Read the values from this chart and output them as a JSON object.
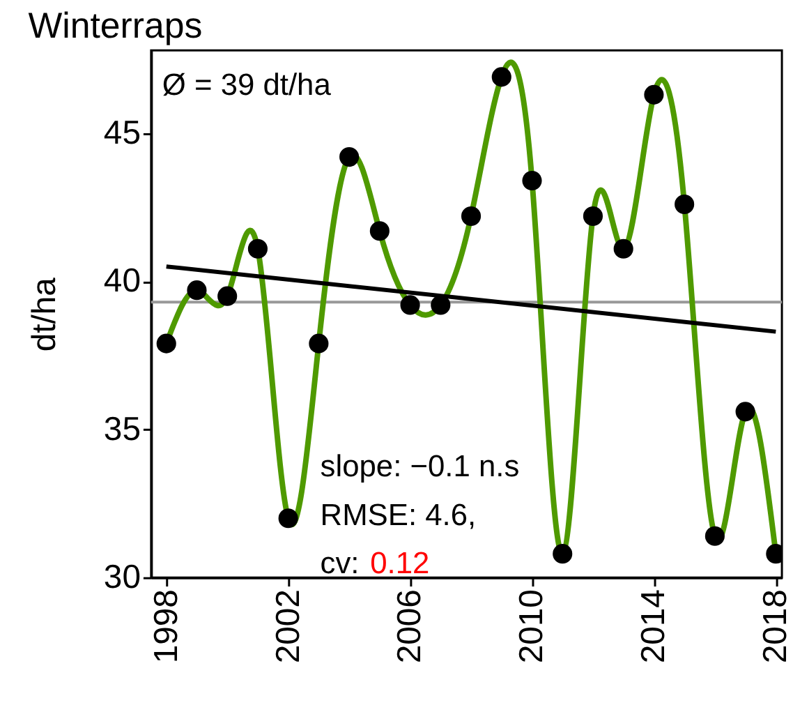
{
  "chart_data": {
    "type": "line",
    "title": "Winterraps",
    "ylabel": "dt/ha",
    "x": [
      1998,
      1999,
      2000,
      2001,
      2002,
      2003,
      2004,
      2005,
      2006,
      2007,
      2008,
      2009,
      2010,
      2011,
      2012,
      2013,
      2014,
      2015,
      2016,
      2017,
      2018
    ],
    "series": [
      {
        "color": "#4f9a00",
        "marker": "circle",
        "values": [
          37.9,
          39.7,
          39.5,
          41.1,
          32.0,
          37.9,
          44.2,
          41.7,
          39.2,
          39.2,
          42.2,
          46.9,
          43.4,
          30.8,
          42.2,
          41.1,
          46.3,
          42.6,
          31.4,
          35.6,
          30.8
        ]
      },
      {
        "type": "line",
        "color": "#000000",
        "marker": "none",
        "x": [
          1998,
          2018
        ],
        "values": [
          40.5,
          38.3
        ]
      }
    ],
    "ref_lines": [
      {
        "axis": "y",
        "value": 39.3,
        "color": "#999999"
      }
    ],
    "annotations": [
      "Ø = 39 dt/ha",
      "slope: −0.1 n.s",
      "RMSE: 4.6,",
      "cv: 0.12"
    ],
    "xlim": [
      1997.5,
      2018.2
    ],
    "ylim": [
      30,
      47.8
    ],
    "xticks": [
      1998,
      2002,
      2006,
      2010,
      2014,
      2018
    ],
    "yticks": [
      30,
      35,
      40,
      45
    ],
    "grid": false
  }
}
